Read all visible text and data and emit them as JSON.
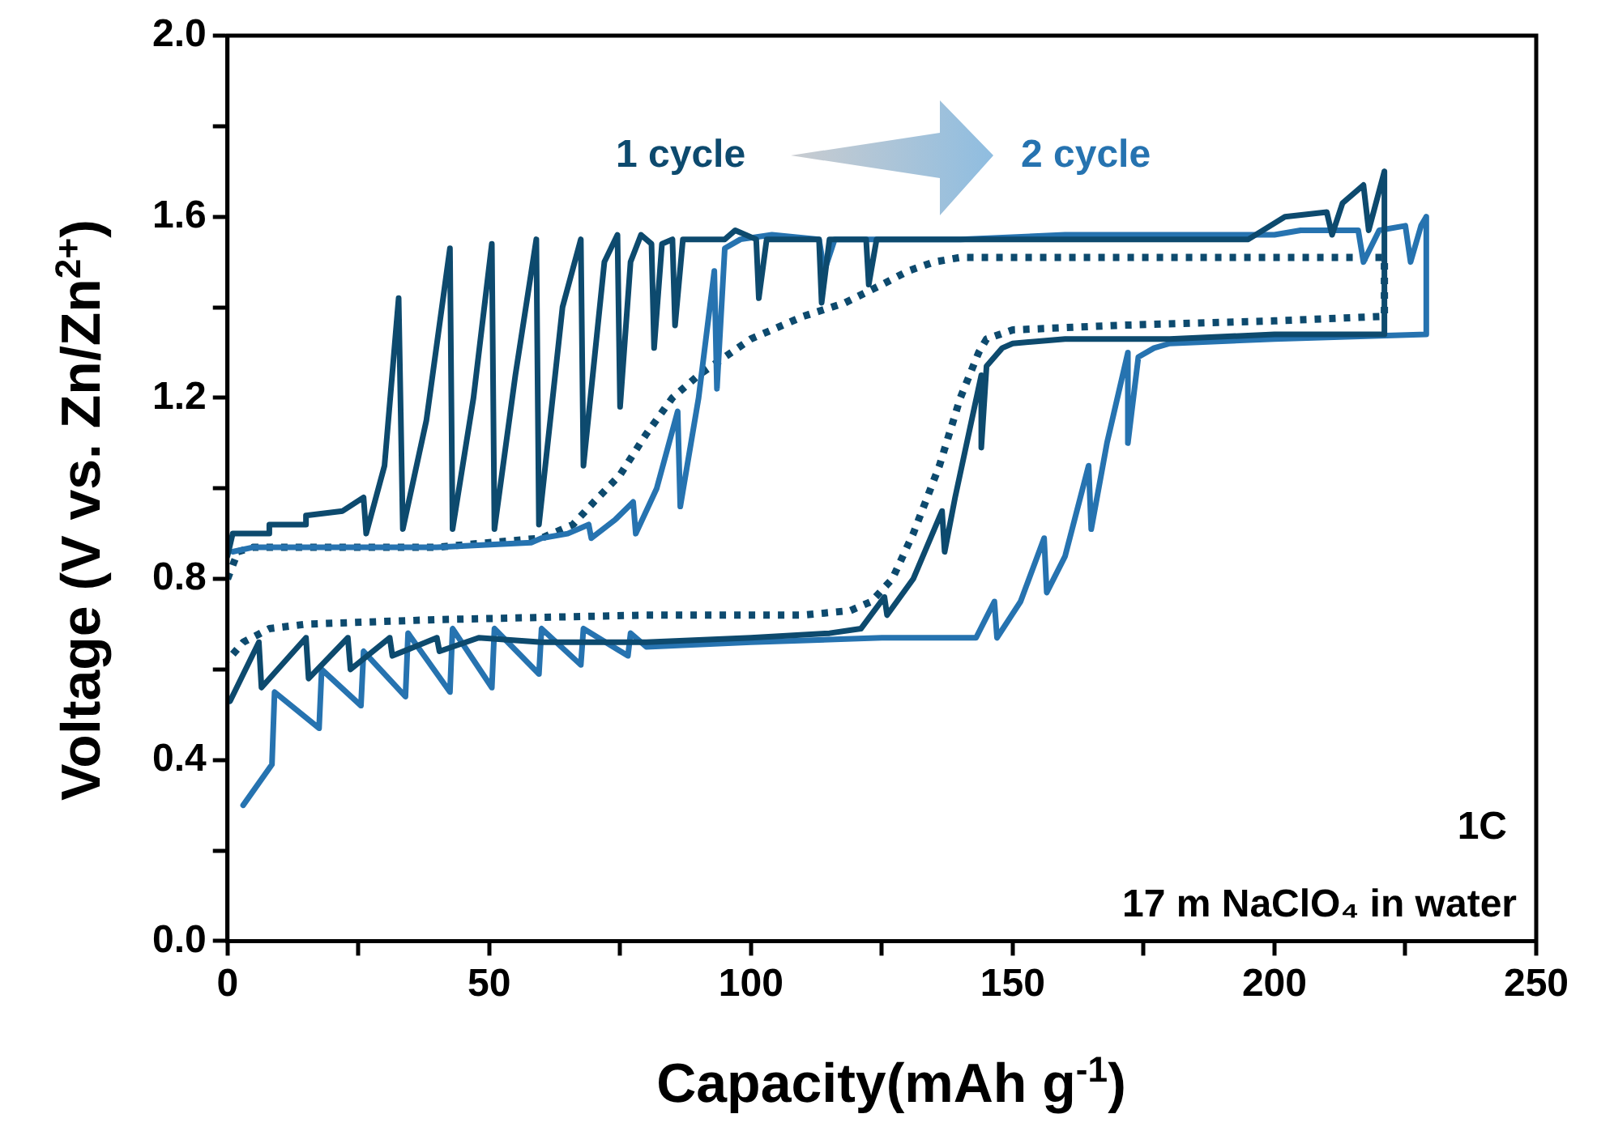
{
  "chart_data": {
    "type": "line",
    "xlabel": "Capacity(mAh g$^{-1}$)",
    "ylabel": "Voltage (V vs. Zn/Zn$^{2+}$)",
    "xlim": [
      0,
      250
    ],
    "xticks": [
      0,
      {
        "value": 25,
        "label": null
      },
      50,
      {
        "value": 75,
        "label": null
      },
      100,
      {
        "value": 125,
        "label": null
      },
      150,
      {
        "value": 175,
        "label": null
      },
      200,
      {
        "value": 225,
        "label": null
      },
      250
    ],
    "ylim": [
      0,
      2
    ],
    "yticks": [
      {
        "value": 0,
        "label": "0.0"
      },
      {
        "value": 0.2,
        "label": null
      },
      {
        "value": 0.4,
        "label": "0.4"
      },
      {
        "value": 0.6,
        "label": null
      },
      {
        "value": 0.8,
        "label": "0.8"
      },
      {
        "value": 1,
        "label": null
      },
      {
        "value": 1.2,
        "label": "1.2"
      },
      {
        "value": 1.4,
        "label": null
      },
      {
        "value": 1.6,
        "label": "1.6"
      },
      {
        "value": 1.8,
        "label": null
      },
      {
        "value": 2,
        "label": "2.0"
      }
    ],
    "grid": false,
    "legend": false,
    "marker": "none",
    "annotations": [
      "1 cycle",
      "2 cycle",
      "1C",
      "17 m NaClO₄ in water"
    ],
    "series": [
      {
        "color": "#0d4a6e",
        "line_style": "solid",
        "x": [
          0,
          1,
          8,
          8,
          15,
          15,
          22,
          26,
          26.5,
          30,
          32.7,
          33.5,
          38,
          42.5,
          43,
          47,
          50.5,
          51,
          55,
          59,
          59.5,
          64,
          67.5,
          68,
          72,
          74.5,
          75,
          77,
          79,
          81,
          81.5,
          83,
          85,
          85.5,
          87,
          89,
          95,
          97,
          101,
          101.5,
          103,
          113,
          113.5,
          115,
          122,
          122.5,
          124,
          138,
          150,
          175,
          195,
          202,
          210,
          211,
          213,
          217,
          218,
          221,
          221,
          200,
          180,
          160,
          150,
          148,
          145,
          144,
          144,
          139,
          137,
          136.5,
          131,
          126,
          125.5,
          121,
          115,
          100,
          80,
          60,
          48,
          40.5,
          40,
          31.5,
          31,
          23.5,
          23,
          15.5,
          15,
          6.5,
          6,
          0.5
        ],
        "values": [
          0.85,
          0.9,
          0.9,
          0.92,
          0.92,
          0.94,
          0.95,
          0.98,
          0.9,
          1.05,
          1.42,
          0.91,
          1.15,
          1.53,
          0.91,
          1.2,
          1.54,
          0.91,
          1.25,
          1.55,
          0.92,
          1.4,
          1.55,
          1.05,
          1.5,
          1.56,
          1.18,
          1.5,
          1.56,
          1.54,
          1.31,
          1.54,
          1.55,
          1.36,
          1.55,
          1.55,
          1.55,
          1.57,
          1.55,
          1.42,
          1.55,
          1.55,
          1.41,
          1.55,
          1.55,
          1.45,
          1.55,
          1.55,
          1.55,
          1.55,
          1.55,
          1.6,
          1.61,
          1.56,
          1.63,
          1.67,
          1.57,
          1.7,
          1.34,
          1.34,
          1.33,
          1.33,
          1.32,
          1.31,
          1.27,
          1.09,
          1.25,
          0.98,
          0.86,
          0.95,
          0.8,
          0.72,
          0.76,
          0.69,
          0.68,
          0.67,
          0.66,
          0.66,
          0.67,
          0.64,
          0.67,
          0.63,
          0.67,
          0.6,
          0.67,
          0.58,
          0.67,
          0.56,
          0.66,
          0.53
        ]
      },
      {
        "color": "#2673b0",
        "line_style": "solid",
        "x": [
          1,
          5,
          20,
          40,
          58,
          60,
          65,
          69,
          69.5,
          74,
          77.5,
          78,
          82,
          86,
          86.5,
          90,
          93,
          93.5,
          95,
          98,
          104,
          113,
          114,
          116,
          125,
          140,
          160,
          180,
          200,
          205,
          216,
          217,
          220,
          225,
          226,
          228,
          229,
          229,
          200,
          180,
          177,
          174,
          172,
          172,
          168,
          165,
          164.5,
          160,
          156.5,
          156,
          151.5,
          147,
          146.5,
          143,
          125,
          100,
          80,
          77,
          76.5,
          68,
          67.5,
          60,
          59.5,
          51,
          50.5,
          43,
          42.5,
          34.5,
          34,
          26,
          25.5,
          18,
          17.5,
          9,
          8.5,
          3
        ],
        "values": [
          0.86,
          0.87,
          0.87,
          0.87,
          0.88,
          0.89,
          0.9,
          0.92,
          0.89,
          0.93,
          0.97,
          0.9,
          1.0,
          1.17,
          0.96,
          1.2,
          1.48,
          1.22,
          1.53,
          1.55,
          1.56,
          1.55,
          1.48,
          1.55,
          1.55,
          1.55,
          1.56,
          1.56,
          1.56,
          1.57,
          1.57,
          1.5,
          1.57,
          1.58,
          1.5,
          1.58,
          1.6,
          1.34,
          1.33,
          1.32,
          1.31,
          1.29,
          1.1,
          1.3,
          1.1,
          0.91,
          1.05,
          0.85,
          0.77,
          0.89,
          0.75,
          0.67,
          0.75,
          0.67,
          0.67,
          0.66,
          0.65,
          0.68,
          0.63,
          0.69,
          0.61,
          0.69,
          0.59,
          0.69,
          0.56,
          0.69,
          0.55,
          0.68,
          0.54,
          0.64,
          0.52,
          0.6,
          0.47,
          0.55,
          0.39,
          0.3
        ]
      },
      {
        "color": "#0d4a6e",
        "line_style": "dotted",
        "x": [
          0,
          2,
          5,
          40,
          60,
          66,
          70,
          75,
          80,
          85,
          90,
          100,
          110,
          118,
          125,
          130,
          135,
          140,
          160,
          200,
          221,
          221,
          200,
          170,
          150,
          145,
          143.5,
          140,
          136,
          131,
          127,
          123,
          119,
          110,
          80,
          40,
          15,
          8,
          3,
          0
        ],
        "values": [
          0.8,
          0.86,
          0.87,
          0.87,
          0.89,
          0.92,
          0.97,
          1.03,
          1.12,
          1.2,
          1.25,
          1.33,
          1.38,
          1.41,
          1.45,
          1.48,
          1.5,
          1.51,
          1.51,
          1.51,
          1.51,
          1.38,
          1.37,
          1.36,
          1.35,
          1.33,
          1.3,
          1.2,
          1.05,
          0.9,
          0.8,
          0.75,
          0.73,
          0.72,
          0.72,
          0.71,
          0.7,
          0.69,
          0.66,
          0.62
        ]
      }
    ]
  }
}
